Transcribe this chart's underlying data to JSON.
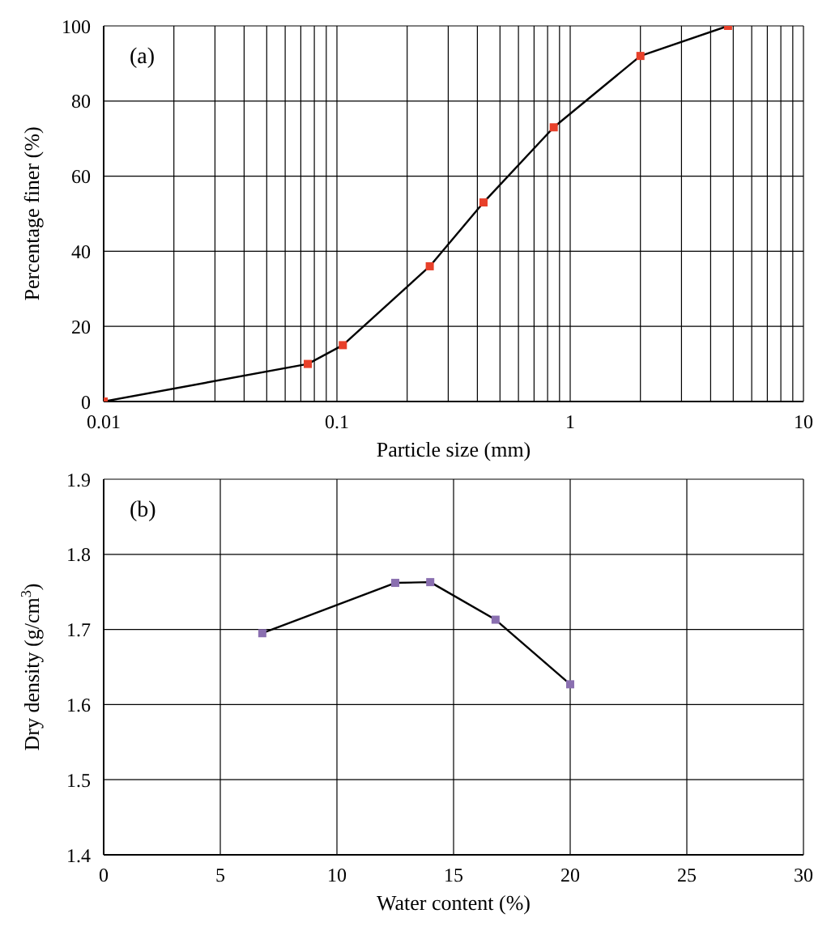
{
  "chart_data": [
    {
      "type": "line",
      "title": "(a)",
      "xlabel": "Particle size (mm)",
      "ylabel": "Percentage finer (%)",
      "log": "x",
      "grid": true,
      "marker": "square",
      "line_style": "solid",
      "xlim": [
        0.01,
        10
      ],
      "xticks": [
        0.01,
        {
          "value": 0.02,
          "label": null
        },
        {
          "value": 0.03,
          "label": null
        },
        {
          "value": 0.04,
          "label": null
        },
        {
          "value": 0.05,
          "label": null
        },
        {
          "value": 0.06,
          "label": null
        },
        {
          "value": 0.07,
          "label": null
        },
        {
          "value": 0.08,
          "label": null
        },
        {
          "value": 0.09,
          "label": null
        },
        0.1,
        {
          "value": 0.2,
          "label": null
        },
        {
          "value": 0.3,
          "label": null
        },
        {
          "value": 0.4,
          "label": null
        },
        {
          "value": 0.5,
          "label": null
        },
        {
          "value": 0.6,
          "label": null
        },
        {
          "value": 0.7,
          "label": null
        },
        {
          "value": 0.8,
          "label": null
        },
        {
          "value": 0.9,
          "label": null
        },
        1,
        {
          "value": 2,
          "label": null
        },
        {
          "value": 3,
          "label": null
        },
        {
          "value": 4,
          "label": null
        },
        {
          "value": 5,
          "label": null
        },
        {
          "value": 6,
          "label": null
        },
        {
          "value": 7,
          "label": null
        },
        {
          "value": 8,
          "label": null
        },
        {
          "value": 9,
          "label": null
        },
        10
      ],
      "ylim": [
        0,
        100
      ],
      "yticks": [
        0,
        20,
        40,
        60,
        80,
        100
      ],
      "series": [
        {
          "color": "#e8402a",
          "x": [
            0.01,
            0.075,
            0.106,
            0.25,
            0.425,
            0.85,
            2,
            4.75
          ],
          "values": [
            0,
            10,
            15,
            36,
            53,
            73,
            92,
            100
          ]
        }
      ]
    },
    {
      "type": "line",
      "title": "(b)",
      "xlabel": "Water content (%)",
      "ylabel": "Dry density (g/cm$^{3}$)",
      "grid": true,
      "marker": "square",
      "line_style": "solid",
      "xlim": [
        0,
        30
      ],
      "xticks": [
        0,
        5,
        10,
        15,
        20,
        25,
        30
      ],
      "ylim": [
        1.4,
        1.9
      ],
      "yticks": [
        1.4,
        1.5,
        1.6,
        1.7,
        1.8,
        1.9
      ],
      "series": [
        {
          "color": "#8a6fb0",
          "x": [
            6.8,
            12.5,
            14,
            16.8,
            20
          ],
          "values": [
            1.695,
            1.762,
            1.763,
            1.713,
            1.627
          ]
        }
      ]
    }
  ]
}
